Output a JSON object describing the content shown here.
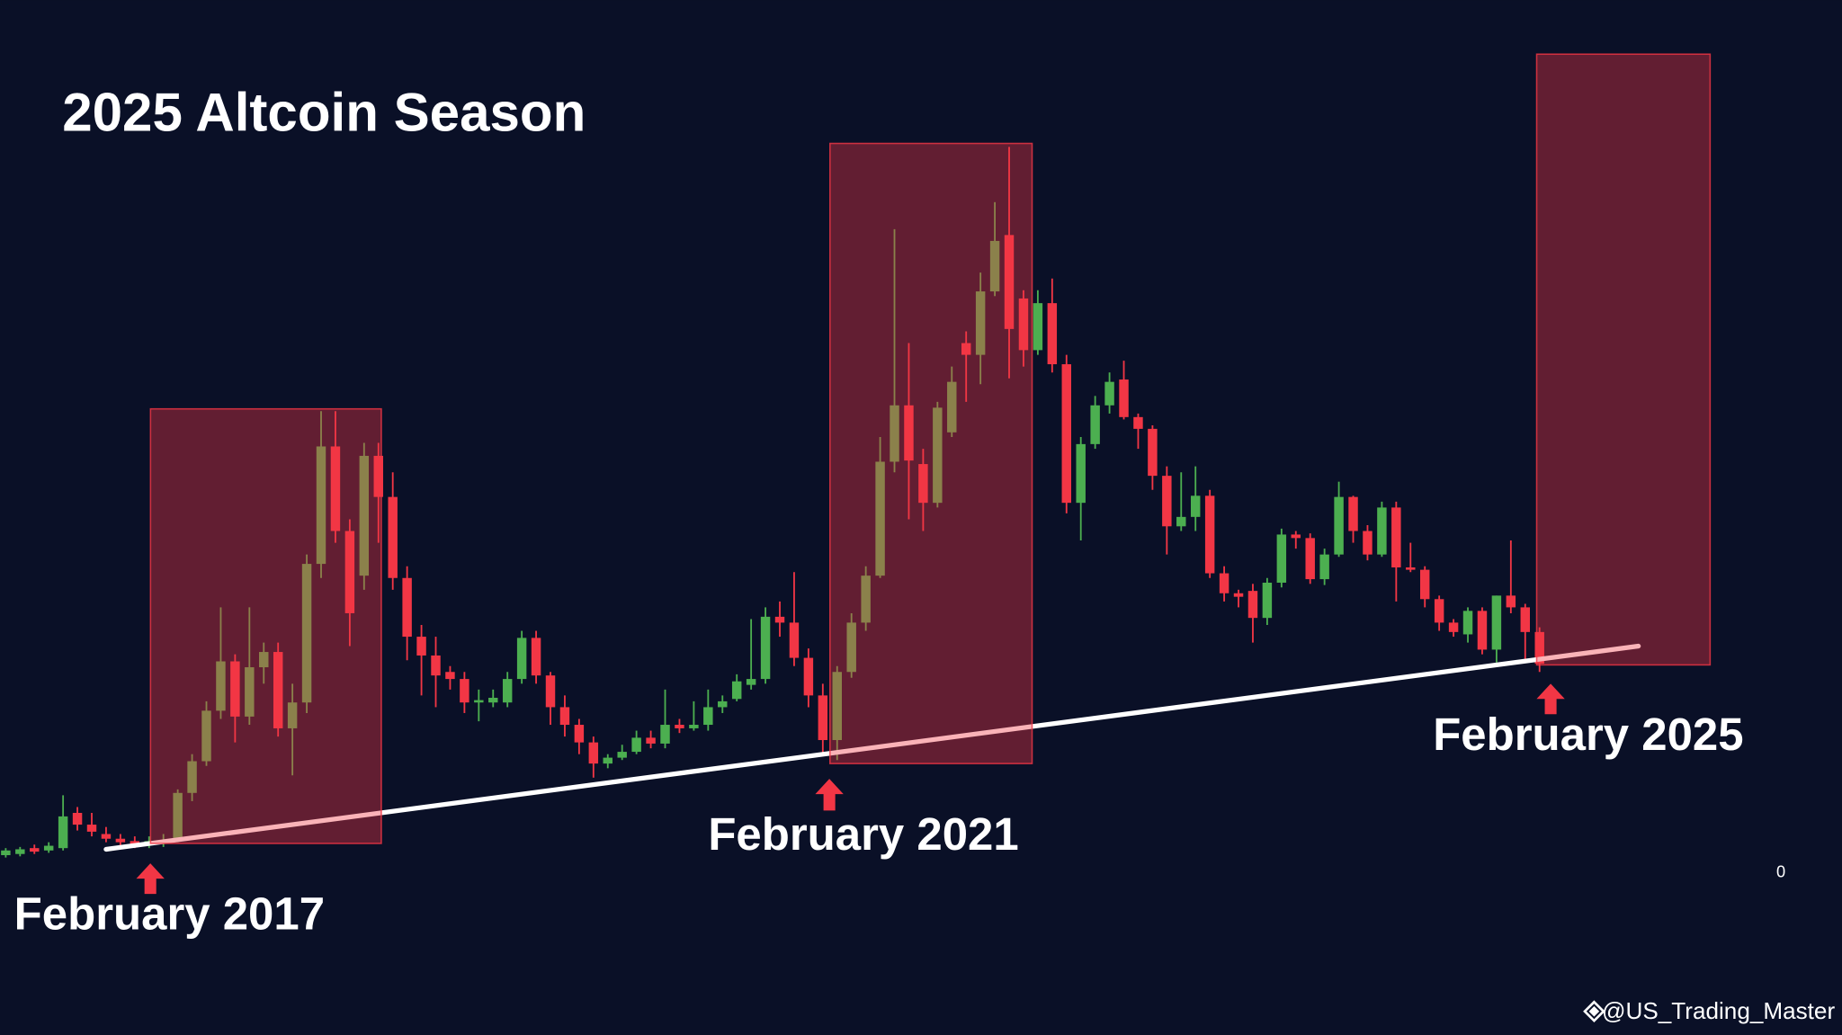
{
  "chart_data": {
    "type": "candlestick",
    "title": "2025 Altcoin Season",
    "watermark": "@US_Trading_Master",
    "up_color": "#4caf50",
    "down_color": "#f23645",
    "xlim": [
      -0.4,
      128.1
    ],
    "ylim": [
      0,
      70
    ],
    "yticks": [
      0
    ],
    "open": [
      1.4,
      1.5,
      2.0,
      1.8,
      2.0,
      5.0,
      4.0,
      3.2,
      2.8,
      2.6,
      2.3,
      2.4,
      2.7,
      6.7,
      9.4,
      13.7,
      17.9,
      13.2,
      17.4,
      18.7,
      12.2,
      14.4,
      26.2,
      36.2,
      29.0,
      25.2,
      35.4,
      31.9,
      25.0,
      20.0,
      18.4,
      17.0,
      16.4,
      14.4,
      14.4,
      14.4,
      16.4,
      19.9,
      16.7,
      14.0,
      12.5,
      11.0,
      9.2,
      9.7,
      10.2,
      11.4,
      10.9,
      12.5,
      12.2,
      12.5,
      14.0,
      14.7,
      15.9,
      16.4,
      21.7,
      21.2,
      18.2,
      15.0,
      11.2,
      17.0,
      21.2,
      25.2,
      34.9,
      39.7,
      34.7,
      31.4,
      37.4,
      45.0,
      44.0,
      49.4,
      54.2,
      48.8,
      44.4,
      48.4,
      43.2,
      31.4,
      36.4,
      39.7,
      41.9,
      38.7,
      37.7,
      33.7,
      29.4,
      30.2,
      32.0,
      25.4,
      23.7,
      23.9,
      21.6,
      24.6,
      28.7,
      28.4,
      24.9,
      27.0,
      31.9,
      29.0,
      27.0,
      31.0,
      25.9,
      25.7,
      23.2,
      21.2,
      20.2,
      22.2,
      18.9,
      23.5,
      22.5,
      20.4
    ],
    "high": [
      2.0,
      2.1,
      2.3,
      2.5,
      6.5,
      5.5,
      5.0,
      3.8,
      3.2,
      3.0,
      3.0,
      3.2,
      7.0,
      10.0,
      14.5,
      22.5,
      18.5,
      22.5,
      19.5,
      19.5,
      16.0,
      27.0,
      39.2,
      39.2,
      30.0,
      36.5,
      36.5,
      34.0,
      26.0,
      21.0,
      20.0,
      17.5,
      17.0,
      15.5,
      15.5,
      17.0,
      20.5,
      20.5,
      17.0,
      15.0,
      13.0,
      11.5,
      10.0,
      10.8,
      12.0,
      12.0,
      15.5,
      13.0,
      14.5,
      15.5,
      15.0,
      16.8,
      21.5,
      22.5,
      23.0,
      25.5,
      19.0,
      16.0,
      17.5,
      22.0,
      26.0,
      37.0,
      54.7,
      45.0,
      36.0,
      40.0,
      43.0,
      46.0,
      51.0,
      57.0,
      61.7,
      49.5,
      49.5,
      50.5,
      44.0,
      37.0,
      40.5,
      42.5,
      43.5,
      39.0,
      38.0,
      34.5,
      34.0,
      34.5,
      32.5,
      26.0,
      24.0,
      24.5,
      25.0,
      29.2,
      29.0,
      28.8,
      27.5,
      33.2,
      32.0,
      29.5,
      31.5,
      31.5,
      28.0,
      26.0,
      23.5,
      21.5,
      22.5,
      22.5,
      23.5,
      28.2,
      22.8,
      20.8
    ],
    "low": [
      1.2,
      1.3,
      1.5,
      1.6,
      1.8,
      3.5,
      3.0,
      2.5,
      2.2,
      2.0,
      2.0,
      2.1,
      2.5,
      6.0,
      9.0,
      13.0,
      11.0,
      12.5,
      16.0,
      11.5,
      8.2,
      13.5,
      25.0,
      28.0,
      19.2,
      24.0,
      28.0,
      24.0,
      18.0,
      15.0,
      14.0,
      15.5,
      13.5,
      12.8,
      14.0,
      14.0,
      16.0,
      16.0,
      12.5,
      11.5,
      10.0,
      8.0,
      8.8,
      9.5,
      10.0,
      10.5,
      10.5,
      11.8,
      12.0,
      12.0,
      13.5,
      14.5,
      15.5,
      16.0,
      20.0,
      17.5,
      14.0,
      10.0,
      9.5,
      16.5,
      20.5,
      25.0,
      34.0,
      30.0,
      29.0,
      31.0,
      37.0,
      40.0,
      41.5,
      49.0,
      42.0,
      43.0,
      44.0,
      42.5,
      30.5,
      28.2,
      36.0,
      39.0,
      38.5,
      36.0,
      32.5,
      27.0,
      29.0,
      29.0,
      25.0,
      23.0,
      22.5,
      19.5,
      21.0,
      24.2,
      27.5,
      24.5,
      24.4,
      26.8,
      28.0,
      26.5,
      26.8,
      23.0,
      25.5,
      22.5,
      20.5,
      20.0,
      19.5,
      18.5,
      17.8,
      22.0,
      18.0,
      17.0
    ],
    "close": [
      1.8,
      1.9,
      1.7,
      2.2,
      4.7,
      4.0,
      3.4,
      2.8,
      2.5,
      2.3,
      2.6,
      2.7,
      6.7,
      9.4,
      13.7,
      17.9,
      13.2,
      17.4,
      18.7,
      12.2,
      14.4,
      26.2,
      36.2,
      29.0,
      22.0,
      35.4,
      31.9,
      25.0,
      20.0,
      18.4,
      16.7,
      16.4,
      14.4,
      14.6,
      14.8,
      16.4,
      19.9,
      16.7,
      14.0,
      12.5,
      11.0,
      9.2,
      9.7,
      10.2,
      11.4,
      10.9,
      12.5,
      12.2,
      12.5,
      14.0,
      14.5,
      16.2,
      16.4,
      21.7,
      21.2,
      18.2,
      15.0,
      11.2,
      17.0,
      21.2,
      25.2,
      34.9,
      39.7,
      35.0,
      31.4,
      39.5,
      41.7,
      44.0,
      49.4,
      53.7,
      46.2,
      44.4,
      48.4,
      43.2,
      31.4,
      36.4,
      39.7,
      41.7,
      38.7,
      37.7,
      33.7,
      29.4,
      30.2,
      32.0,
      25.4,
      23.7,
      23.4,
      21.6,
      24.6,
      28.7,
      28.4,
      24.9,
      27.0,
      31.9,
      29.0,
      27.0,
      31.0,
      25.9,
      25.7,
      23.2,
      21.2,
      20.4,
      22.2,
      18.9,
      23.5,
      22.5,
      20.4,
      17.7
    ],
    "trendline": {
      "color": "#ffffff",
      "x": [
        7.0,
        113.9
      ],
      "y": [
        1.9,
        19.2
      ]
    },
    "highlights": [
      {
        "x": [
          10.1,
          26.2
        ],
        "y": [
          2.4,
          39.4
        ],
        "color": "#f23645"
      },
      {
        "x": [
          57.5,
          71.6
        ],
        "y": [
          9.2,
          62.0
        ],
        "color": "#f23645"
      },
      {
        "x": [
          106.8,
          118.9
        ],
        "y": [
          17.6,
          69.6
        ],
        "color": "#f23645"
      }
    ],
    "annotations": [
      {
        "text": "February 2017"
      },
      {
        "text": "February 2021"
      },
      {
        "text": "February 2025"
      }
    ]
  }
}
